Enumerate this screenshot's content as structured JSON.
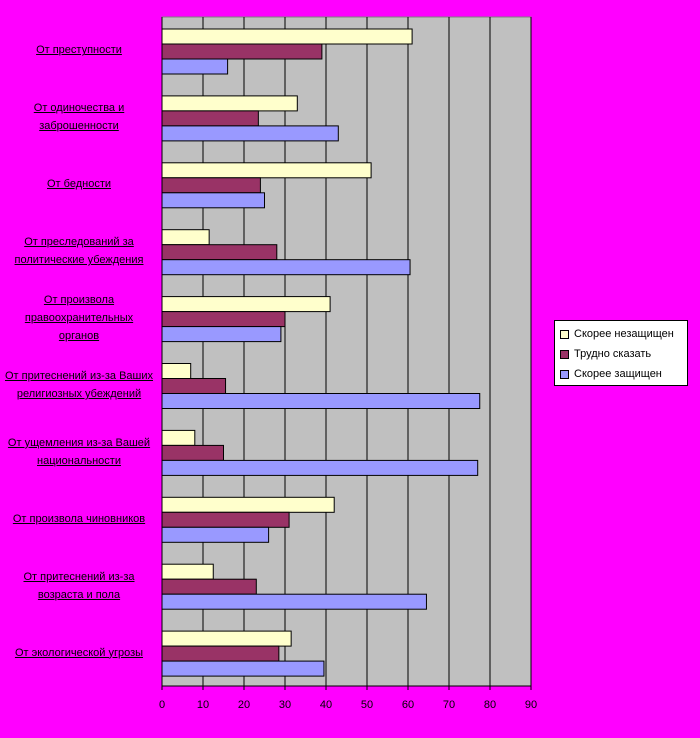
{
  "chart_data": {
    "type": "bar",
    "orientation": "horizontal",
    "categories": [
      "От преступности",
      "От одиночества и заброшенности",
      "От бедности",
      "От преследований за политические убеждения",
      "От произвола правоохранительных органов",
      "От притеснений из-за Ваших религиозных убеждений",
      "От ущемления из-за Вашей национальности",
      "От произвола чиновников",
      "От притеснений из-за возраста и пола",
      "От экологической угрозы"
    ],
    "series": [
      {
        "name": "Скорее незащищен",
        "color": "#ffffcc",
        "values": [
          61,
          33,
          51,
          11.5,
          41,
          7,
          8,
          42,
          12.5,
          31.5
        ]
      },
      {
        "name": "Трудно сказать",
        "color": "#993366",
        "values": [
          39,
          23.5,
          24,
          28,
          30,
          15.5,
          15,
          31,
          23,
          28.5
        ]
      },
      {
        "name": "Скорее защищен",
        "color": "#9999ff",
        "values": [
          16,
          43,
          25,
          60.5,
          29,
          77.5,
          77,
          26,
          64.5,
          39.5
        ]
      }
    ],
    "xlim": [
      0,
      90
    ],
    "xticks": [
      "0",
      "10",
      "20",
      "30",
      "40",
      "50",
      "60",
      "70",
      "80",
      "90"
    ],
    "grid": true,
    "legend_position": "right",
    "plot_background": "#c0c0c0",
    "page_background": "#ff00ff"
  }
}
